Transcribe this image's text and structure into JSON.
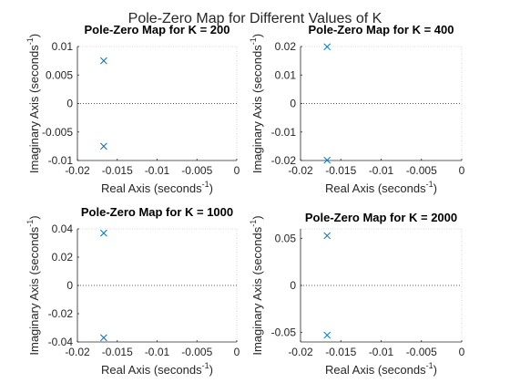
{
  "figure_title": "Pole-Zero Map for Different Values of K",
  "axes_color": "#262626",
  "marker_color": "#0072BD",
  "zero_line_color": "#262626",
  "chart_data": [
    {
      "type": "scatter",
      "marker": "x",
      "title": "Pole-Zero Map for K = 200",
      "xlabel": "Real Axis (seconds",
      "ylabel": "Imaginary Axis (seconds",
      "label_superscript": "-1",
      "xlim": [
        -0.02,
        0
      ],
      "ylim": [
        -0.01,
        0.01
      ],
      "xticks": [
        -0.02,
        -0.015,
        -0.01,
        -0.005,
        0
      ],
      "xtick_labels": [
        "-0.02",
        "-0.015",
        "-0.01",
        "-0.005",
        "0"
      ],
      "yticks": [
        -0.01,
        -0.005,
        0,
        0.005,
        0.01
      ],
      "ytick_labels": [
        "-0.01",
        "-0.005",
        "0",
        "0.005",
        "0.01"
      ],
      "grid": false,
      "points": [
        {
          "x": -0.0167,
          "y": 0.0075
        },
        {
          "x": -0.0167,
          "y": -0.0075
        }
      ]
    },
    {
      "type": "scatter",
      "marker": "x",
      "title": "Pole-Zero Map for K = 400",
      "xlabel": "Real Axis (seconds",
      "ylabel": "Imaginary Axis (seconds",
      "label_superscript": "-1",
      "xlim": [
        -0.02,
        0
      ],
      "ylim": [
        -0.02,
        0.02
      ],
      "xticks": [
        -0.02,
        -0.015,
        -0.01,
        -0.005,
        0
      ],
      "xtick_labels": [
        "-0.02",
        "-0.015",
        "-0.01",
        "-0.005",
        "0"
      ],
      "yticks": [
        -0.02,
        -0.01,
        0,
        0.01,
        0.02
      ],
      "ytick_labels": [
        "-0.02",
        "-0.01",
        "0",
        "0.01",
        "0.02"
      ],
      "grid": false,
      "points": [
        {
          "x": -0.0167,
          "y": 0.0199
        },
        {
          "x": -0.0167,
          "y": -0.0199
        }
      ]
    },
    {
      "type": "scatter",
      "marker": "x",
      "title": "Pole-Zero Map for K = 1000",
      "xlabel": "Real Axis (seconds",
      "ylabel": "Imaginary Axis (seconds",
      "label_superscript": "-1",
      "xlim": [
        -0.02,
        0
      ],
      "ylim": [
        -0.04,
        0.04
      ],
      "xticks": [
        -0.02,
        -0.015,
        -0.01,
        -0.005,
        0
      ],
      "xtick_labels": [
        "-0.02",
        "-0.015",
        "-0.01",
        "-0.005",
        "0"
      ],
      "yticks": [
        -0.04,
        -0.02,
        0,
        0.02,
        0.04
      ],
      "ytick_labels": [
        "-0.04",
        "-0.02",
        "0",
        "0.02",
        "0.04"
      ],
      "grid": false,
      "points": [
        {
          "x": -0.0167,
          "y": 0.037
        },
        {
          "x": -0.0167,
          "y": -0.037
        }
      ]
    },
    {
      "type": "scatter",
      "marker": "x",
      "title": "Pole-Zero Map for K = 2000",
      "xlabel": "Real Axis (seconds",
      "ylabel": "Imaginary Axis (seconds",
      "label_superscript": "-1",
      "xlim": [
        -0.02,
        0
      ],
      "ylim": [
        -0.06,
        0.06
      ],
      "xticks": [
        -0.02,
        -0.015,
        -0.01,
        -0.005,
        0
      ],
      "xtick_labels": [
        "-0.02",
        "-0.015",
        "-0.01",
        "-0.005",
        "0"
      ],
      "yticks": [
        -0.05,
        0,
        0.05
      ],
      "ytick_labels": [
        "-0.05",
        "0",
        "0.05"
      ],
      "grid": false,
      "points": [
        {
          "x": -0.0167,
          "y": 0.0528
        },
        {
          "x": -0.0167,
          "y": -0.0528
        }
      ]
    }
  ]
}
